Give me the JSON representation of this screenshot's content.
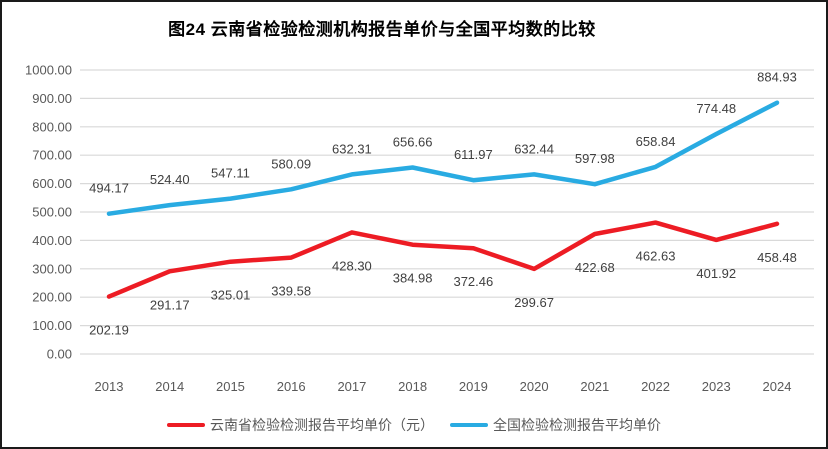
{
  "chart_data": {
    "type": "line",
    "title": "图24 云南省检验检测机构报告单价与全国平均数的比较",
    "categories": [
      "2013",
      "2014",
      "2015",
      "2016",
      "2017",
      "2018",
      "2019",
      "2020",
      "2021",
      "2022",
      "2023",
      "2024"
    ],
    "series": [
      {
        "name": "云南省检验检测报告平均单价（元）",
        "color": "#ED1C24",
        "label_position": "below",
        "values": [
          202.19,
          291.17,
          325.01,
          339.58,
          428.3,
          384.98,
          372.46,
          299.67,
          422.68,
          462.63,
          401.92,
          458.48
        ]
      },
      {
        "name": "全国检验检测报告平均单价",
        "color": "#29ABE2",
        "label_position": "above",
        "values": [
          494.17,
          524.4,
          547.11,
          580.09,
          632.31,
          656.66,
          611.97,
          632.44,
          597.98,
          658.84,
          774.48,
          884.93
        ]
      }
    ],
    "ylim": [
      0,
      1000
    ],
    "y_ticks": [
      "1000.00",
      "900.00",
      "800.00",
      "700.00",
      "600.00",
      "500.00",
      "400.00",
      "300.00",
      "200.00",
      "100.00",
      "0.00"
    ],
    "grid": true,
    "data_labels": true,
    "legend_position": "bottom",
    "colors": {
      "gridline": "#D9D9D9",
      "axis_text": "#595959",
      "data_label_text": "#404040",
      "frame_border": "#1A1A1A",
      "background": "#FFFFFF"
    }
  }
}
